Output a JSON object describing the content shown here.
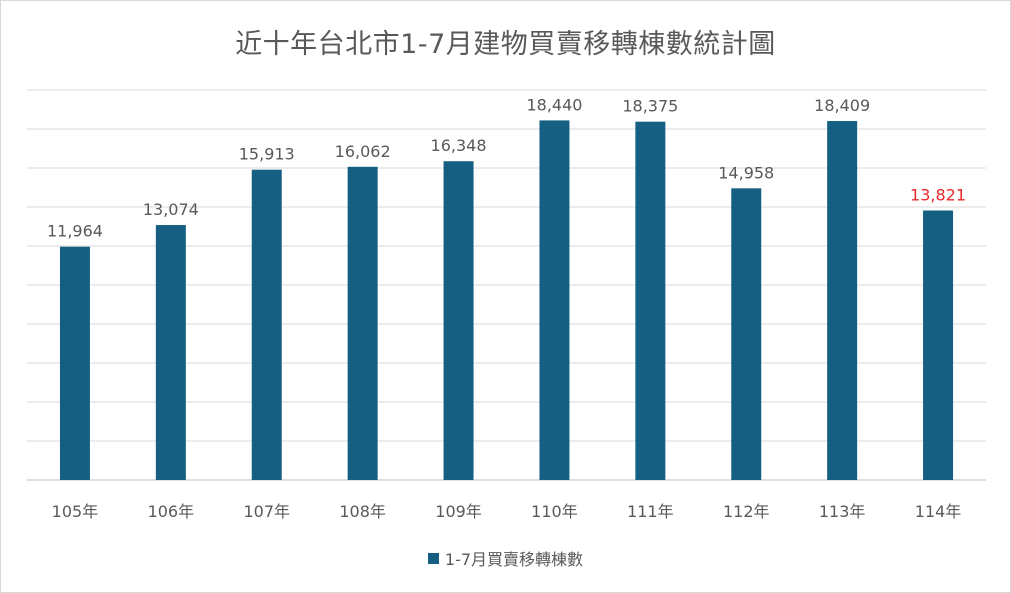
{
  "chart_data": {
    "type": "bar",
    "title": "近十年台北市1-7月建物買賣移轉棟數統計圖",
    "categories": [
      "105年",
      "106年",
      "107年",
      "108年",
      "109年",
      "110年",
      "111年",
      "112年",
      "113年",
      "114年"
    ],
    "series": [
      {
        "name": "1-7月買賣移轉棟數",
        "values": [
          11964,
          13074,
          15913,
          16062,
          16348,
          18440,
          18375,
          14958,
          18409,
          13821
        ],
        "data_labels": [
          "11,964",
          "13,074",
          "15,913",
          "16,062",
          "16,348",
          "18,440",
          "18,375",
          "14,958",
          "18,409",
          "13,821"
        ],
        "color": "#156082"
      }
    ],
    "ylim": [
      0,
      20000
    ],
    "grid": true,
    "legend_position": "bottom",
    "label_color": "#595959",
    "highlight_label_color": "#e8282b",
    "highlight_index": 9
  }
}
